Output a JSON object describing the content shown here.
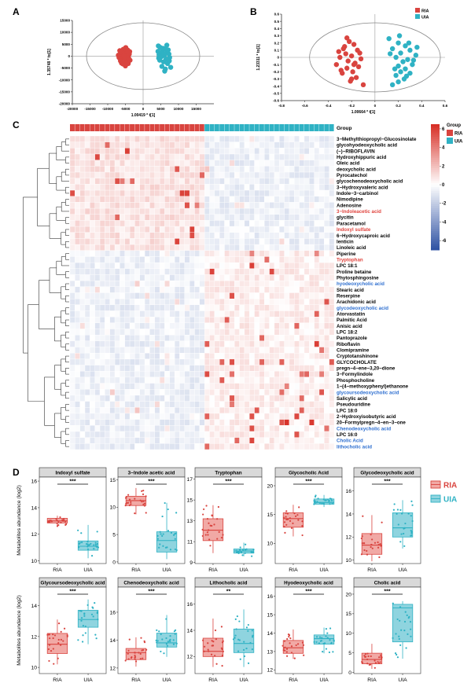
{
  "panels": {
    "A": "A",
    "B": "B",
    "C": "C",
    "D": "D"
  },
  "colors": {
    "RIA": "#d9443f",
    "UIA": "#2fb2c4",
    "RIA_fill": "#f1a9a5",
    "UIA_fill": "#8fd4df"
  },
  "chart_data": [
    {
      "type": "scatter",
      "panel": "A",
      "xlabel": "1.00419 * t[1]",
      "ylabel": "1.35748 * to[1]",
      "xlim": [
        -20000,
        20000
      ],
      "ylim": [
        -20000,
        15000
      ],
      "xticks": [
        -20000,
        -15000,
        -10000,
        -5000,
        0,
        5000,
        10000,
        15000
      ],
      "yticks": [
        15000,
        10000,
        5000,
        0,
        -5000,
        -10000,
        -15000,
        -20000
      ],
      "series": [
        {
          "name": "RIA",
          "points": [
            [
              -5200,
              2200
            ],
            [
              -4800,
              1500
            ],
            [
              -5900,
              800
            ],
            [
              -4300,
              300
            ],
            [
              -5500,
              -400
            ],
            [
              -6200,
              -1100
            ],
            [
              -4700,
              -1500
            ],
            [
              -5100,
              -2300
            ],
            [
              -4200,
              -3100
            ],
            [
              -6800,
              -600
            ],
            [
              -3900,
              900
            ],
            [
              -5600,
              2900
            ],
            [
              -4500,
              -2800
            ],
            [
              -6000,
              1700
            ],
            [
              -5300,
              -800
            ],
            [
              -4900,
              3600
            ],
            [
              -7000,
              400
            ],
            [
              -3700,
              -1700
            ],
            [
              -5700,
              -3300
            ],
            [
              -4400,
              2600
            ],
            [
              -6400,
              -2000
            ],
            [
              -5000,
              -4100
            ],
            [
              -3800,
              1900
            ],
            [
              -6600,
              2300
            ],
            [
              -4100,
              -600
            ],
            [
              -5400,
              100
            ],
            [
              -6100,
              -2900
            ]
          ]
        },
        {
          "name": "UIA",
          "points": [
            [
              4800,
              3700
            ],
            [
              6200,
              3100
            ],
            [
              5500,
              2600
            ],
            [
              4200,
              2000
            ],
            [
              6800,
              1800
            ],
            [
              5000,
              1300
            ],
            [
              7300,
              900
            ],
            [
              4500,
              600
            ],
            [
              6000,
              300
            ],
            [
              5200,
              -200
            ],
            [
              7500,
              -600
            ],
            [
              6500,
              -1200
            ],
            [
              4700,
              -1700
            ],
            [
              5800,
              -2400
            ],
            [
              6900,
              -3100
            ],
            [
              5300,
              -4300
            ],
            [
              6300,
              -5400
            ],
            [
              7800,
              -4700
            ],
            [
              4300,
              4300
            ],
            [
              6700,
              4600
            ],
            [
              5600,
              3300
            ],
            [
              7100,
              2600
            ],
            [
              4400,
              -800
            ],
            [
              6100,
              -6300
            ],
            [
              5900,
              1000
            ],
            [
              7400,
              -2000
            ]
          ]
        }
      ]
    },
    {
      "type": "scatter",
      "panel": "B",
      "xlabel": "1.00664 * t[1]",
      "ylabel": "1.23311 * to[1]",
      "xlim": [
        -0.8,
        0.6
      ],
      "ylim": [
        -0.6,
        0.6
      ],
      "xticks": [
        -0.8,
        -0.6,
        -0.4,
        -0.2,
        0,
        0.2,
        0.4,
        0.6
      ],
      "yticks": [
        0.6,
        0.5,
        0.4,
        0.3,
        0.2,
        0.1,
        0,
        -0.1,
        -0.2,
        -0.3,
        -0.4,
        -0.5,
        -0.6
      ],
      "series": [
        {
          "name": "RIA",
          "points": [
            [
              -0.22,
              0.22
            ],
            [
              -0.18,
              0.18
            ],
            [
              -0.27,
              0.12
            ],
            [
              -0.15,
              0.1
            ],
            [
              -0.25,
              0.05
            ],
            [
              -0.2,
              0.02
            ],
            [
              -0.3,
              0.0
            ],
            [
              -0.12,
              -0.02
            ],
            [
              -0.23,
              -0.05
            ],
            [
              -0.17,
              -0.08
            ],
            [
              -0.33,
              -0.1
            ],
            [
              -0.14,
              -0.13
            ],
            [
              -0.24,
              -0.15
            ],
            [
              -0.19,
              -0.2
            ],
            [
              -0.28,
              -0.22
            ],
            [
              -0.16,
              -0.28
            ],
            [
              -0.21,
              -0.33
            ],
            [
              -0.1,
              -0.38
            ],
            [
              -0.26,
              0.15
            ],
            [
              -0.31,
              0.08
            ],
            [
              -0.2,
              -0.3
            ],
            [
              -0.13,
              0.06
            ],
            [
              -0.29,
              -0.18
            ],
            [
              -0.18,
              -0.1
            ],
            [
              -0.24,
              0.27
            ]
          ]
        },
        {
          "name": "UIA",
          "points": [
            [
              0.12,
              0.26
            ],
            [
              0.2,
              0.2
            ],
            [
              0.26,
              0.16
            ],
            [
              0.15,
              0.12
            ],
            [
              0.3,
              0.1
            ],
            [
              0.22,
              0.06
            ],
            [
              0.35,
              0.03
            ],
            [
              0.18,
              0.0
            ],
            [
              0.28,
              -0.03
            ],
            [
              0.24,
              -0.06
            ],
            [
              0.32,
              -0.1
            ],
            [
              0.2,
              -0.12
            ],
            [
              0.26,
              -0.16
            ],
            [
              0.22,
              -0.2
            ],
            [
              0.3,
              -0.22
            ],
            [
              0.18,
              -0.25
            ],
            [
              0.25,
              -0.3
            ],
            [
              0.2,
              -0.34
            ],
            [
              0.15,
              -0.38
            ],
            [
              0.36,
              0.14
            ],
            [
              0.13,
              0.05
            ],
            [
              0.29,
              0.2
            ],
            [
              0.17,
              -0.16
            ],
            [
              0.33,
              -0.04
            ],
            [
              0.21,
              0.3
            ],
            [
              0.27,
              -0.26
            ]
          ]
        }
      ]
    },
    {
      "type": "heatmap",
      "panel": "C",
      "column_annotation_title": "Group",
      "legend_title": "Group",
      "legend_groups": [
        "RIA",
        "UIA"
      ],
      "colorbar_ticks": [
        6,
        4,
        2,
        0,
        -2,
        -4,
        -6
      ],
      "vlim": [
        -7,
        6.5
      ],
      "n_ria": 27,
      "n_uia": 26,
      "rows": [
        {
          "name": "3−Methylthiopropyl−Glucosinolate",
          "color": "#000000"
        },
        {
          "name": "glycohyodeoxycholic acid",
          "color": "#000000"
        },
        {
          "name": "(−)−RIBOFLAVIN",
          "color": "#000000"
        },
        {
          "name": "Hydroxyhippuric acid",
          "color": "#000000"
        },
        {
          "name": "Oleic acid",
          "color": "#000000"
        },
        {
          "name": "deoxycholic acid",
          "color": "#000000"
        },
        {
          "name": "Pyrocatechol",
          "color": "#000000"
        },
        {
          "name": "glycochenodeoxycholic acid",
          "color": "#000000"
        },
        {
          "name": "3−Hydroxyvaleric acid",
          "color": "#000000"
        },
        {
          "name": "Indole−3−carbinol",
          "color": "#000000"
        },
        {
          "name": "Nimodipine",
          "color": "#000000"
        },
        {
          "name": "Adenosine",
          "color": "#000000"
        },
        {
          "name": "3−Indoleacetic acid",
          "color": "#e0443e"
        },
        {
          "name": "glycitin",
          "color": "#000000"
        },
        {
          "name": "Paracetamol",
          "color": "#000000"
        },
        {
          "name": "Indoxyl sulfate",
          "color": "#e0443e"
        },
        {
          "name": "6−Hydroxycaproic acid",
          "color": "#000000"
        },
        {
          "name": "lenticin",
          "color": "#000000"
        },
        {
          "name": "Linoleic acid",
          "color": "#000000"
        },
        {
          "name": "Piperine",
          "color": "#000000"
        },
        {
          "name": "Tryptophan",
          "color": "#e0443e"
        },
        {
          "name": "LPC 18:1",
          "color": "#000000"
        },
        {
          "name": "Proline betaine",
          "color": "#000000"
        },
        {
          "name": "Phytosphingosine",
          "color": "#000000"
        },
        {
          "name": "hyodeoxycholic acid",
          "color": "#2e6fd0"
        },
        {
          "name": "Stearic acid",
          "color": "#000000"
        },
        {
          "name": "Reserpine",
          "color": "#000000"
        },
        {
          "name": "Arachidonic acid",
          "color": "#000000"
        },
        {
          "name": "glycodeoxycholic acid",
          "color": "#2e6fd0"
        },
        {
          "name": "Atorvastatin",
          "color": "#000000"
        },
        {
          "name": "Palmitic Acid",
          "color": "#000000"
        },
        {
          "name": "Anisic acid",
          "color": "#000000"
        },
        {
          "name": "LPC 18:2",
          "color": "#000000"
        },
        {
          "name": "Pantoprazole",
          "color": "#000000"
        },
        {
          "name": "Riboflavin",
          "color": "#000000"
        },
        {
          "name": "Clomipramine",
          "color": "#000000"
        },
        {
          "name": "Cryptotanshinone",
          "color": "#000000"
        },
        {
          "name": "GLYCOCHOLATE",
          "color": "#000000"
        },
        {
          "name": "pregn−4−ene−3,20−dione",
          "color": "#000000"
        },
        {
          "name": "3−Formylindole",
          "color": "#000000"
        },
        {
          "name": "Phosphocholine",
          "color": "#000000"
        },
        {
          "name": "1−(4−methoxyphenyl)ethanone",
          "color": "#000000"
        },
        {
          "name": "glycoursodeoxycholic acid",
          "color": "#2e6fd0"
        },
        {
          "name": "Salicylic acid",
          "color": "#000000"
        },
        {
          "name": "Pseudouridine",
          "color": "#000000"
        },
        {
          "name": "LPC 18:0",
          "color": "#000000"
        },
        {
          "name": "2−Hydroxyisobutyric acid",
          "color": "#000000"
        },
        {
          "name": "20−Formylpregn−4−en−3−one",
          "color": "#000000"
        },
        {
          "name": "Chenodeoxycholic acid",
          "color": "#2e6fd0"
        },
        {
          "name": "LPC 16:0",
          "color": "#000000"
        },
        {
          "name": "Cholic Acid",
          "color": "#2e6fd0"
        },
        {
          "name": "lithocholic acid",
          "color": "#2e6fd0"
        }
      ]
    },
    {
      "type": "box",
      "panel": "D",
      "ylabel": "Metabolites abundance (log2)",
      "legend": [
        "RIA",
        "UIA"
      ],
      "groups": [
        "RIA",
        "UIA"
      ],
      "plots": [
        {
          "title": "Indoxyl sulfate",
          "sig": "***",
          "ylim": [
            9.8,
            16.3
          ],
          "yticks": [
            10,
            12,
            14,
            16
          ],
          "RIA": {
            "min": 12.6,
            "q1": 12.85,
            "med": 13.0,
            "q3": 13.2,
            "max": 13.4
          },
          "UIA": {
            "min": 10.2,
            "q1": 10.8,
            "med": 11.1,
            "q3": 11.5,
            "max": 12.7
          }
        },
        {
          "title": "3−Indole acetic acid",
          "sig": "***",
          "ylim": [
            -0.3,
            15.5
          ],
          "yticks": [
            0,
            5,
            10,
            15
          ],
          "RIA": {
            "min": 8.7,
            "q1": 10.3,
            "med": 11.2,
            "q3": 12.0,
            "max": 13.5
          },
          "UIA": {
            "min": 0.5,
            "q1": 1.8,
            "med": 3.9,
            "q3": 5.5,
            "max": 10.8
          }
        },
        {
          "title": "Tryptophan",
          "sig": "***",
          "ylim": [
            8.9,
            17.2
          ],
          "yticks": [
            9,
            11,
            13,
            15,
            17
          ],
          "RIA": {
            "min": 9.9,
            "q1": 11.1,
            "med": 12.1,
            "q3": 13.2,
            "max": 14.5
          },
          "UIA": {
            "min": 9.6,
            "q1": 9.9,
            "med": 10.1,
            "q3": 10.3,
            "max": 10.9
          }
        },
        {
          "title": "Glycocholic Acid",
          "sig": "***",
          "ylim": [
            6.5,
            21.5
          ],
          "yticks": [
            10,
            15,
            20
          ],
          "RIA": {
            "min": 11.2,
            "q1": 12.8,
            "med": 14.3,
            "q3": 15.3,
            "max": 16.7
          },
          "UIA": {
            "min": 16.3,
            "q1": 16.8,
            "med": 17.1,
            "q3": 17.7,
            "max": 18.4
          }
        },
        {
          "title": "Glycodeoxycholic acid",
          "sig": "***",
          "ylim": [
            9.7,
            17.2
          ],
          "yticks": [
            10,
            12,
            14,
            16
          ],
          "RIA": {
            "min": 9.9,
            "q1": 10.5,
            "med": 11.3,
            "q3": 12.3,
            "max": 13.9
          },
          "UIA": {
            "min": 11.0,
            "q1": 12.0,
            "med": 12.8,
            "q3": 14.1,
            "max": 15.2
          }
        },
        {
          "title": "Glycoursodeoxycholic acid",
          "sig": "***",
          "ylim": [
            9.6,
            15.2
          ],
          "yticks": [
            10,
            12,
            14
          ],
          "RIA": {
            "min": 10.2,
            "q1": 10.9,
            "med": 11.5,
            "q3": 12.2,
            "max": 13.1
          },
          "UIA": {
            "min": 11.5,
            "q1": 12.6,
            "med": 13.1,
            "q3": 13.7,
            "max": 14.4
          }
        },
        {
          "title": "Chenodeoxycholic acid",
          "sig": "***",
          "ylim": [
            11.6,
            17.8
          ],
          "yticks": [
            12,
            14,
            16
          ],
          "RIA": {
            "min": 12.1,
            "q1": 12.6,
            "med": 13.1,
            "q3": 13.4,
            "max": 14.2
          },
          "UIA": {
            "min": 12.8,
            "q1": 13.5,
            "med": 13.8,
            "q3": 14.5,
            "max": 15.8
          }
        },
        {
          "title": "Lithocholic acid",
          "sig": "**",
          "ylim": [
            10.7,
            17.3
          ],
          "yticks": [
            12,
            14,
            16
          ],
          "RIA": {
            "min": 11.2,
            "q1": 12.0,
            "med": 12.4,
            "q3": 13.4,
            "max": 14.9
          },
          "UIA": {
            "min": 11.2,
            "q1": 12.3,
            "med": 13.0,
            "q3": 14.1,
            "max": 15.6
          }
        },
        {
          "title": "Hyodeoxycholic acid",
          "sig": "***",
          "ylim": [
            11.8,
            16.5
          ],
          "yticks": [
            12,
            13,
            14,
            15,
            16
          ],
          "RIA": {
            "min": 12.6,
            "q1": 12.9,
            "med": 13.2,
            "q3": 13.6,
            "max": 14.2
          },
          "UIA": {
            "min": 12.9,
            "q1": 13.4,
            "med": 13.7,
            "q3": 13.9,
            "max": 14.3
          }
        },
        {
          "title": "Cholic acid",
          "sig": "***",
          "ylim": [
            -0.3,
            21.8
          ],
          "yticks": [
            0,
            5,
            10,
            15,
            20
          ],
          "RIA": {
            "min": 0.9,
            "q1": 2.2,
            "med": 3.3,
            "q3": 4.9,
            "max": 7.3
          },
          "UIA": {
            "min": 3.5,
            "q1": 7.8,
            "med": 16.5,
            "q3": 17.4,
            "max": 18.2
          }
        }
      ]
    }
  ]
}
